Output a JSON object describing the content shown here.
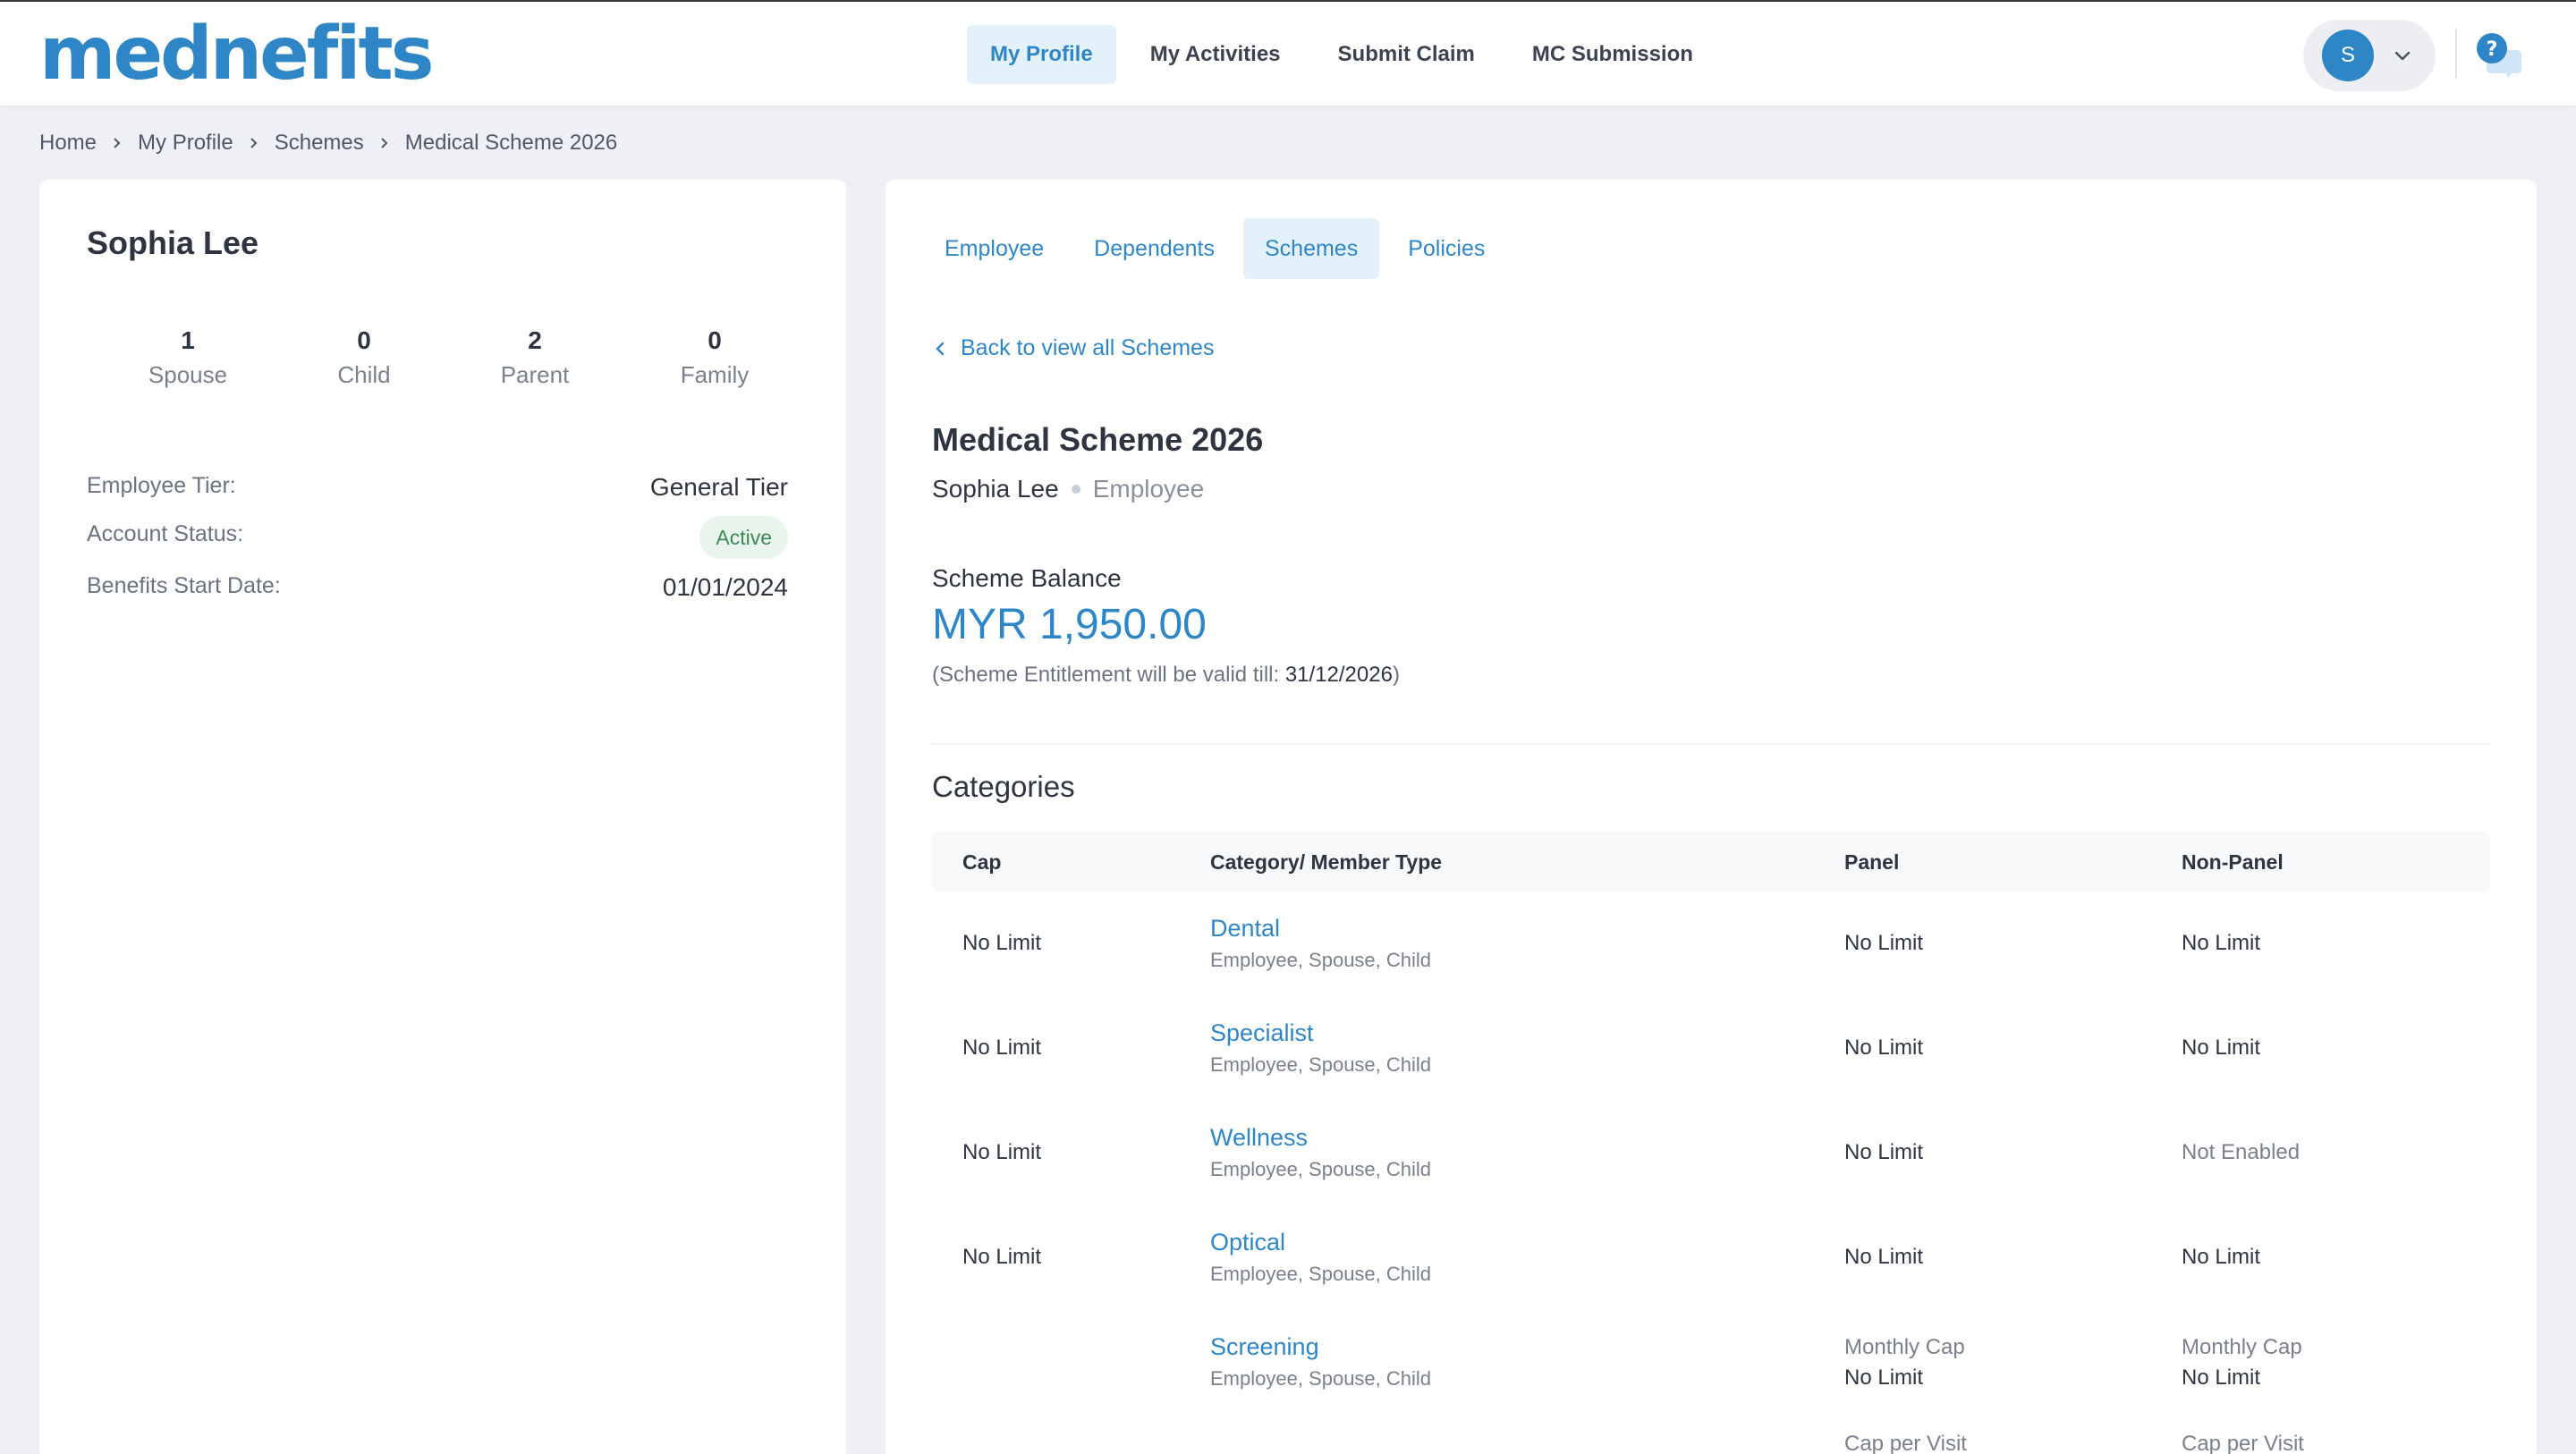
{
  "brand": {
    "logo_text": "mednefits"
  },
  "nav": {
    "items": [
      {
        "label": "My Profile",
        "active": true
      },
      {
        "label": "My Activities",
        "active": false
      },
      {
        "label": "Submit Claim",
        "active": false
      },
      {
        "label": "MC Submission",
        "active": false
      }
    ]
  },
  "user_menu": {
    "avatar_initial": "S"
  },
  "breadcrumb": [
    "Home",
    "My Profile",
    "Schemes",
    "Medical Scheme 2026"
  ],
  "profile": {
    "name": "Sophia Lee",
    "stats": [
      {
        "count": "1",
        "label": "Spouse"
      },
      {
        "count": "0",
        "label": "Child"
      },
      {
        "count": "2",
        "label": "Parent"
      },
      {
        "count": "0",
        "label": "Family"
      }
    ],
    "employee_tier_label": "Employee Tier:",
    "employee_tier_value": "General Tier",
    "account_status_label": "Account Status:",
    "account_status_value": "Active",
    "benefits_start_label": "Benefits Start Date:",
    "benefits_start_value": "01/01/2024"
  },
  "tabs": [
    {
      "label": "Employee",
      "active": false
    },
    {
      "label": "Dependents",
      "active": false
    },
    {
      "label": "Schemes",
      "active": true
    },
    {
      "label": "Policies",
      "active": false
    }
  ],
  "scheme": {
    "back_label": "Back to view all Schemes",
    "title": "Medical Scheme 2026",
    "holder": "Sophia Lee",
    "role": "Employee",
    "balance_label": "Scheme Balance",
    "balance_amount": "MYR 1,950.00",
    "validity_prefix": "(Scheme Entitlement will be valid till: ",
    "validity_date": "31/12/2026",
    "validity_suffix": ")"
  },
  "categories": {
    "title": "Categories",
    "headers": {
      "cap": "Cap",
      "category": "Category/ Member Type",
      "panel": "Panel",
      "non_panel": "Non-Panel"
    },
    "rows": [
      {
        "cap": "No Limit",
        "name": "Dental",
        "members": "Employee, Spouse, Child",
        "panel": "No Limit",
        "non_panel": "No Limit"
      },
      {
        "cap": "No Limit",
        "name": "Specialist",
        "members": "Employee, Spouse, Child",
        "panel": "No Limit",
        "non_panel": "No Limit"
      },
      {
        "cap": "No Limit",
        "name": "Wellness",
        "members": "Employee, Spouse, Child",
        "panel": "No Limit",
        "non_panel": "Not Enabled"
      },
      {
        "cap": "No Limit",
        "name": "Optical",
        "members": "Employee, Spouse, Child",
        "panel": "No Limit",
        "non_panel": "No Limit"
      },
      {
        "cap": "",
        "name": "Screening",
        "members": "Employee, Spouse, Child",
        "panel_cap_label": "Monthly Cap",
        "panel": "No Limit",
        "non_panel_cap_label": "Monthly Cap",
        "non_panel": "No Limit",
        "panel_extra_label": "Cap per Visit",
        "non_panel_extra_label": "Cap per Visit"
      }
    ]
  },
  "colors": {
    "accent": "#2f86c6",
    "accent_bg": "#e3f1fb",
    "status_active": "#3a8a55"
  }
}
